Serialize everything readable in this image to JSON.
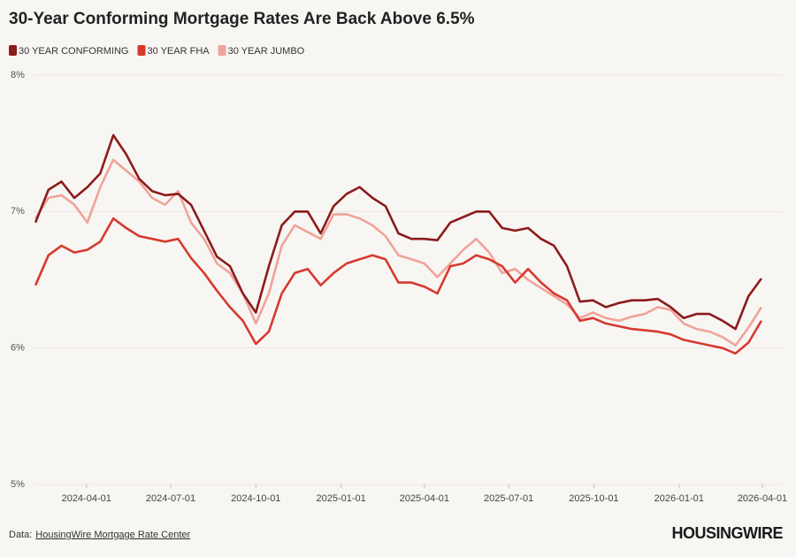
{
  "chart_data": {
    "type": "line",
    "title": "30-Year Conforming Mortgage Rates Are Back Above 6.5%",
    "x": [
      "2024-02-06",
      "2024-02-20",
      "2024-03-05",
      "2024-03-19",
      "2024-04-02",
      "2024-04-16",
      "2024-04-30",
      "2024-05-14",
      "2024-05-28",
      "2024-06-11",
      "2024-06-25",
      "2024-07-09",
      "2024-07-23",
      "2024-08-06",
      "2024-08-20",
      "2024-09-03",
      "2024-09-17",
      "2024-10-01",
      "2024-10-15",
      "2024-10-29",
      "2024-11-12",
      "2024-11-26",
      "2024-12-10",
      "2024-12-24",
      "2025-01-07",
      "2025-01-21",
      "2025-02-04",
      "2025-02-18",
      "2025-03-04",
      "2025-03-18",
      "2025-04-01",
      "2025-04-15",
      "2025-04-29",
      "2025-05-13",
      "2025-05-27",
      "2025-06-10",
      "2025-06-24",
      "2025-07-08",
      "2025-07-22",
      "2025-08-05",
      "2025-08-19",
      "2025-09-02",
      "2025-09-16",
      "2025-09-30",
      "2025-10-14",
      "2025-10-28",
      "2025-11-11",
      "2025-11-25",
      "2025-12-09",
      "2025-12-23",
      "2026-01-06",
      "2026-01-20",
      "2026-02-03",
      "2026-02-17",
      "2026-03-03",
      "2026-03-17",
      "2026-03-31"
    ],
    "series": [
      {
        "name": "30 YEAR CONFORMING",
        "color": "#8b1c1c",
        "values": [
          6.92,
          7.16,
          7.22,
          7.1,
          7.18,
          7.28,
          7.56,
          7.42,
          7.24,
          7.15,
          7.12,
          7.13,
          7.05,
          6.86,
          6.67,
          6.6,
          6.4,
          6.26,
          6.6,
          6.9,
          7.0,
          7.0,
          6.84,
          7.04,
          7.13,
          7.18,
          7.1,
          7.04,
          6.84,
          6.8,
          6.8,
          6.79,
          6.92,
          6.96,
          7.0,
          7.0,
          6.88,
          6.86,
          6.88,
          6.8,
          6.75,
          6.6,
          6.34,
          6.35,
          6.3,
          6.33,
          6.35,
          6.35,
          6.36,
          6.3,
          6.22,
          6.25,
          6.25,
          6.2,
          6.14,
          6.38,
          6.51
        ]
      },
      {
        "name": "30 YEAR FHA",
        "color": "#d63a2f",
        "values": [
          6.46,
          6.68,
          6.75,
          6.7,
          6.72,
          6.78,
          6.95,
          6.88,
          6.82,
          6.8,
          6.78,
          6.8,
          6.66,
          6.55,
          6.42,
          6.3,
          6.2,
          6.03,
          6.12,
          6.4,
          6.55,
          6.58,
          6.46,
          6.55,
          6.62,
          6.65,
          6.68,
          6.65,
          6.48,
          6.48,
          6.45,
          6.4,
          6.6,
          6.62,
          6.68,
          6.65,
          6.6,
          6.48,
          6.58,
          6.48,
          6.4,
          6.35,
          6.2,
          6.22,
          6.18,
          6.16,
          6.14,
          6.13,
          6.12,
          6.1,
          6.06,
          6.04,
          6.02,
          6.0,
          5.96,
          6.04,
          6.2
        ]
      },
      {
        "name": "30 YEAR JUMBO",
        "color": "#f0a39a",
        "values": [
          6.95,
          7.1,
          7.12,
          7.05,
          6.92,
          7.18,
          7.38,
          7.3,
          7.22,
          7.1,
          7.05,
          7.15,
          6.92,
          6.8,
          6.62,
          6.55,
          6.4,
          6.18,
          6.4,
          6.75,
          6.9,
          6.85,
          6.8,
          6.98,
          6.98,
          6.95,
          6.9,
          6.82,
          6.68,
          6.65,
          6.62,
          6.52,
          6.62,
          6.72,
          6.8,
          6.7,
          6.55,
          6.58,
          6.5,
          6.44,
          6.38,
          6.32,
          6.22,
          6.26,
          6.22,
          6.2,
          6.23,
          6.25,
          6.3,
          6.28,
          6.18,
          6.14,
          6.12,
          6.08,
          6.02,
          6.15,
          6.3
        ]
      }
    ],
    "xlim": [
      "2024-02-03",
      "2026-04-23"
    ],
    "xticks": [
      "2024-04-01",
      "2024-07-01",
      "2024-10-01",
      "2025-01-01",
      "2025-04-01",
      "2025-07-01",
      "2025-10-01",
      "2026-01-01",
      "2026-04-01"
    ],
    "ylim": [
      5,
      8
    ],
    "yticks": [
      {
        "value": 5,
        "label": "5%"
      },
      {
        "value": 6,
        "label": "6%"
      },
      {
        "value": 7,
        "label": "7%"
      },
      {
        "value": 8,
        "label": "8%"
      }
    ],
    "grid": true,
    "legend": "top-left"
  },
  "footer": {
    "source_prefix": "Data:",
    "source_link": "HousingWire Mortgage Rate Center",
    "logo": "HOUSINGWIRE"
  }
}
